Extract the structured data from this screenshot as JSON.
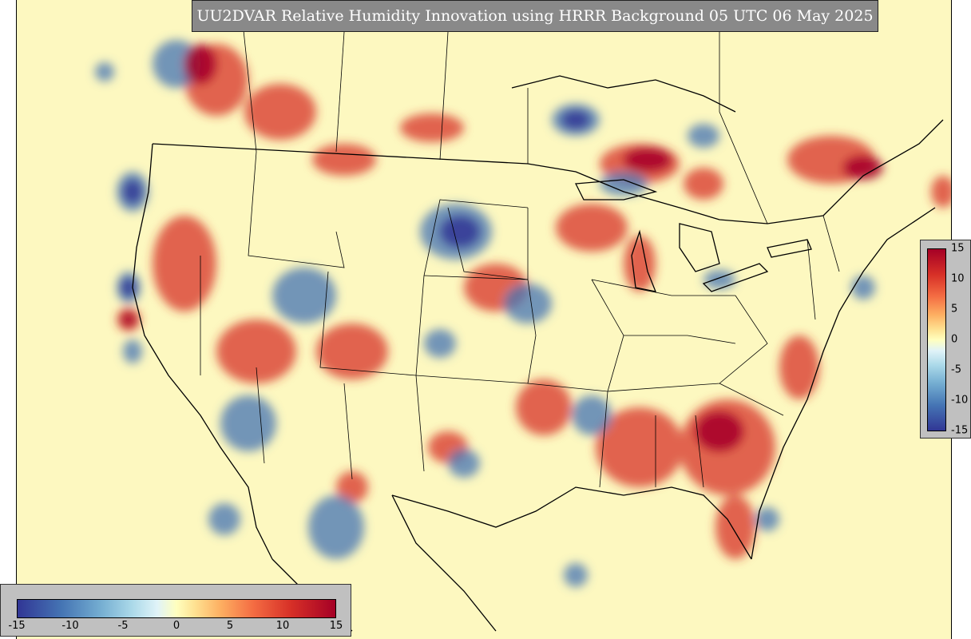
{
  "title": "UU2DVAR Relative Humidity Innovation using HRRR Background 05 UTC 06 May 2025",
  "map": {
    "background_color": "#fdf8c0",
    "positive_color": "#c0102a",
    "negative_color": "#2b4aa5"
  },
  "colorbar_vertical": {
    "ticks": [
      "15",
      "10",
      "5",
      "0",
      "-5",
      "-10",
      "-15"
    ],
    "values": [
      15,
      10,
      5,
      0,
      -5,
      -10,
      -15
    ],
    "range": [
      -15,
      15
    ],
    "colormap": "RdYlBu_r"
  },
  "colorbar_horizontal": {
    "ticks": [
      "-15",
      "-10",
      "-5",
      "0",
      "5",
      "10",
      "15"
    ],
    "values": [
      -15,
      -10,
      -5,
      0,
      5,
      10,
      15
    ],
    "range": [
      -15,
      15
    ],
    "colormap": "RdYlBu_r"
  }
}
